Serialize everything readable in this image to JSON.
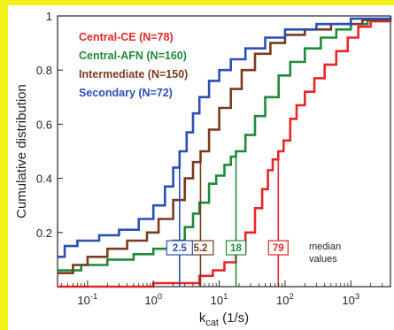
{
  "chart_data": {
    "type": "line",
    "title": "",
    "xlabel": "k",
    "xlabel_sub": "cat",
    "xlabel_unit": " (1/s)",
    "ylabel": "Cumulative distribution",
    "x_scale": "log",
    "xlim": [
      0.035,
      4000
    ],
    "ylim": [
      0.0,
      1.0
    ],
    "x_ticks": [
      {
        "value": 0.1,
        "base": "10",
        "exp": "-1"
      },
      {
        "value": 1,
        "base": "10",
        "exp": "0"
      },
      {
        "value": 10,
        "base": "10",
        "exp": "1"
      },
      {
        "value": 100,
        "base": "10",
        "exp": "2"
      },
      {
        "value": 1000,
        "base": "10",
        "exp": "3"
      }
    ],
    "y_ticks": [
      {
        "value": 0.2,
        "label": "0.2"
      },
      {
        "value": 0.4,
        "label": "0.4"
      },
      {
        "value": 0.6,
        "label": "0.6"
      },
      {
        "value": 0.8,
        "label": "0.8"
      },
      {
        "value": 1.0,
        "label": "1"
      }
    ],
    "grid": false,
    "legend_position": "top-left",
    "series": [
      {
        "name": "Central-CE (N=78)",
        "color": "#e8262a",
        "median": 79,
        "median_label": "79",
        "points": [
          [
            0.035,
            0.0
          ],
          [
            0.2,
            0.0
          ],
          [
            1,
            0.013
          ],
          [
            5,
            0.04
          ],
          [
            8,
            0.06
          ],
          [
            12,
            0.09
          ],
          [
            18,
            0.13
          ],
          [
            25,
            0.2
          ],
          [
            35,
            0.29
          ],
          [
            45,
            0.36
          ],
          [
            55,
            0.43
          ],
          [
            65,
            0.47
          ],
          [
            79,
            0.5
          ],
          [
            95,
            0.54
          ],
          [
            120,
            0.62
          ],
          [
            150,
            0.67
          ],
          [
            200,
            0.72
          ],
          [
            280,
            0.77
          ],
          [
            400,
            0.82
          ],
          [
            600,
            0.87
          ],
          [
            900,
            0.92
          ],
          [
            1300,
            0.96
          ],
          [
            2000,
            0.98
          ],
          [
            4000,
            0.99
          ]
        ]
      },
      {
        "name": "Central-AFN (N=160)",
        "color": "#1f8a3c",
        "median": 18,
        "median_label": "18",
        "points": [
          [
            0.035,
            0.06
          ],
          [
            0.08,
            0.08
          ],
          [
            0.2,
            0.1
          ],
          [
            0.5,
            0.12
          ],
          [
            1,
            0.14
          ],
          [
            2,
            0.17
          ],
          [
            3,
            0.22
          ],
          [
            4,
            0.27
          ],
          [
            5,
            0.31
          ],
          [
            7,
            0.38
          ],
          [
            9,
            0.41
          ],
          [
            12,
            0.45
          ],
          [
            15,
            0.48
          ],
          [
            18,
            0.5
          ],
          [
            25,
            0.56
          ],
          [
            35,
            0.63
          ],
          [
            50,
            0.7
          ],
          [
            80,
            0.78
          ],
          [
            120,
            0.83
          ],
          [
            200,
            0.88
          ],
          [
            350,
            0.92
          ],
          [
            600,
            0.95
          ],
          [
            1000,
            0.97
          ],
          [
            1800,
            0.985
          ],
          [
            4000,
            0.99
          ]
        ]
      },
      {
        "name": "Intermediate (N=150)",
        "color": "#7a3b20",
        "median": 5.2,
        "median_label": "5.2",
        "points": [
          [
            0.035,
            0.05
          ],
          [
            0.06,
            0.08
          ],
          [
            0.1,
            0.11
          ],
          [
            0.2,
            0.14
          ],
          [
            0.4,
            0.17
          ],
          [
            0.8,
            0.2
          ],
          [
            1.2,
            0.25
          ],
          [
            2,
            0.32
          ],
          [
            3,
            0.4
          ],
          [
            4,
            0.46
          ],
          [
            5.2,
            0.5
          ],
          [
            7,
            0.58
          ],
          [
            10,
            0.66
          ],
          [
            15,
            0.73
          ],
          [
            22,
            0.8
          ],
          [
            35,
            0.86
          ],
          [
            60,
            0.9
          ],
          [
            100,
            0.93
          ],
          [
            200,
            0.95
          ],
          [
            500,
            0.97
          ],
          [
            1500,
            0.985
          ],
          [
            4000,
            0.99
          ]
        ]
      },
      {
        "name": "Secondary (N=72)",
        "color": "#2a4fb5",
        "median": 2.5,
        "median_label": "2.5",
        "points": [
          [
            0.035,
            0.11
          ],
          [
            0.045,
            0.15
          ],
          [
            0.07,
            0.17
          ],
          [
            0.15,
            0.19
          ],
          [
            0.3,
            0.21
          ],
          [
            0.6,
            0.25
          ],
          [
            1,
            0.3
          ],
          [
            1.5,
            0.37
          ],
          [
            2,
            0.44
          ],
          [
            2.5,
            0.5
          ],
          [
            3.2,
            0.57
          ],
          [
            4,
            0.64
          ],
          [
            5,
            0.7
          ],
          [
            7,
            0.76
          ],
          [
            10,
            0.8
          ],
          [
            15,
            0.84
          ],
          [
            25,
            0.88
          ],
          [
            50,
            0.92
          ],
          [
            100,
            0.95
          ],
          [
            300,
            0.97
          ],
          [
            1000,
            0.99
          ],
          [
            4000,
            1.0
          ]
        ]
      }
    ],
    "annotation": [
      "median",
      "values"
    ]
  }
}
